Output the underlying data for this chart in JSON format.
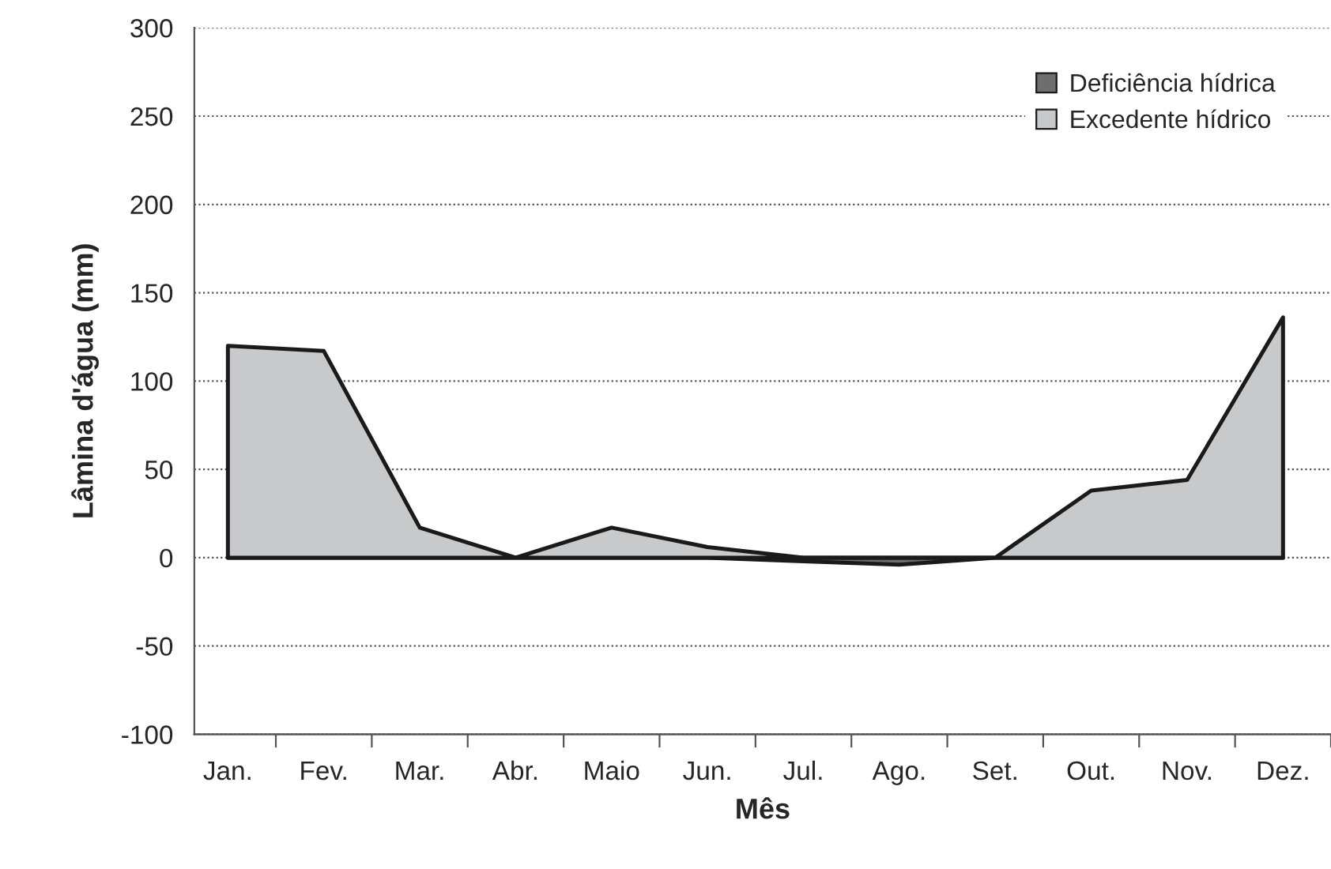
{
  "chart_data": {
    "type": "area",
    "xlabel": "Mês",
    "ylabel": "Lâmina d'água (mm)",
    "categories": [
      "Jan.",
      "Fev.",
      "Mar.",
      "Abr.",
      "Maio",
      "Jun.",
      "Jul.",
      "Ago.",
      "Set.",
      "Out.",
      "Nov.",
      "Dez."
    ],
    "series": [
      {
        "name": "Deficiência hídrica",
        "color": "#6e6e6e",
        "values": [
          0,
          0,
          0,
          0,
          0,
          0,
          -2,
          -4,
          0,
          0,
          0,
          0
        ]
      },
      {
        "name": "Excedente hídrico",
        "color": "#c8c9ca",
        "values": [
          120,
          117,
          17,
          0,
          17,
          6,
          0,
          0,
          0,
          38,
          44,
          136
        ]
      }
    ],
    "ylim": [
      -100,
      300
    ],
    "yticks": [
      -100,
      -50,
      0,
      50,
      100,
      150,
      200,
      250,
      300
    ],
    "grid": "y",
    "legend": "top right"
  }
}
